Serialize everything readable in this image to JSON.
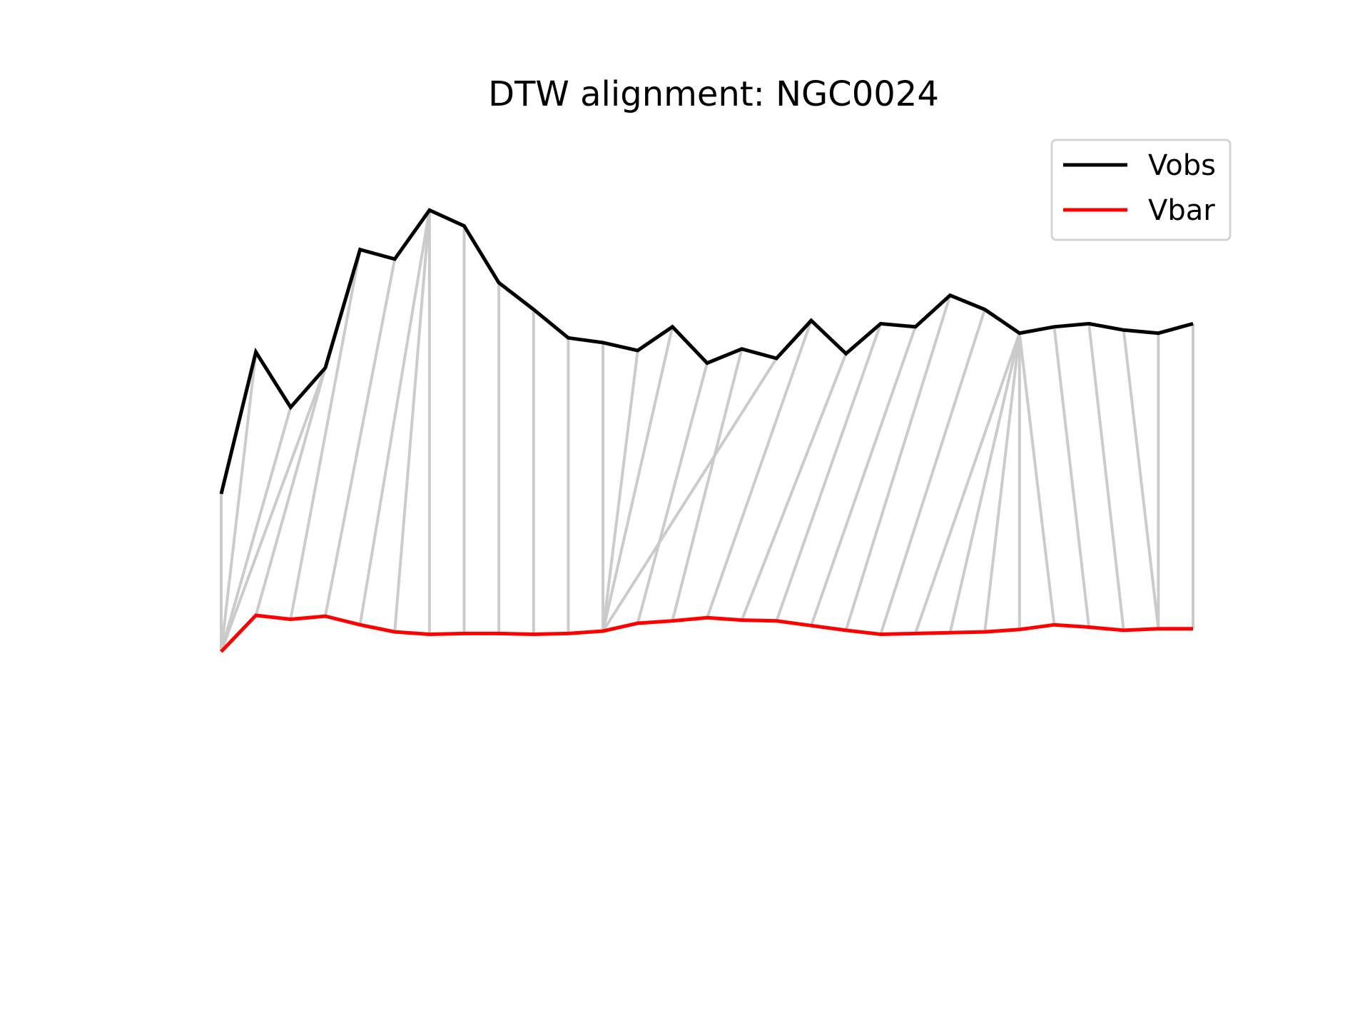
{
  "chart_data": {
    "type": "line",
    "title": "DTW alignment: NGC0024",
    "xlabel": "",
    "ylabel": "",
    "axes_visible": false,
    "grid": false,
    "legend_position": "top-right",
    "xlim": [
      0,
      28
    ],
    "ylim": [
      -1.0,
      3.8
    ],
    "series": [
      {
        "name": "Vobs",
        "color": "#000000",
        "x": [
          0,
          1,
          2,
          3,
          4,
          5,
          6,
          7,
          8,
          9,
          10,
          11,
          12,
          13,
          14,
          15,
          16,
          17,
          18,
          19,
          20,
          21,
          22,
          23,
          24,
          25,
          26,
          27,
          28
        ],
        "values": [
          1.5,
          2.4,
          2.05,
          2.3,
          3.05,
          2.99,
          3.3,
          3.2,
          2.84,
          2.67,
          2.49,
          2.46,
          2.41,
          2.56,
          2.33,
          2.42,
          2.36,
          2.6,
          2.39,
          2.58,
          2.56,
          2.76,
          2.67,
          2.52,
          2.56,
          2.58,
          2.54,
          2.52,
          2.58
        ]
      },
      {
        "name": "Vbar",
        "color": "#ff0000",
        "x": [
          0,
          1,
          2,
          3,
          4,
          5,
          6,
          7,
          8,
          9,
          10,
          11,
          12,
          13,
          14,
          15,
          16,
          17,
          18,
          19,
          20,
          21,
          22,
          23,
          24,
          25,
          26,
          27,
          28
        ],
        "values": [
          0.5,
          0.73,
          0.705,
          0.725,
          0.67,
          0.625,
          0.61,
          0.615,
          0.615,
          0.61,
          0.615,
          0.63,
          0.68,
          0.695,
          0.715,
          0.7,
          0.695,
          0.665,
          0.635,
          0.61,
          0.615,
          0.62,
          0.625,
          0.64,
          0.67,
          0.655,
          0.635,
          0.645,
          0.645
        ]
      }
    ],
    "alignment": {
      "color": "#c8c8c8",
      "pairs": [
        [
          0,
          0
        ],
        [
          1,
          0
        ],
        [
          2,
          0
        ],
        [
          3,
          0
        ],
        [
          3,
          1
        ],
        [
          4,
          2
        ],
        [
          5,
          3
        ],
        [
          6,
          4
        ],
        [
          6,
          5
        ],
        [
          6,
          6
        ],
        [
          7,
          7
        ],
        [
          8,
          8
        ],
        [
          9,
          9
        ],
        [
          10,
          10
        ],
        [
          11,
          11
        ],
        [
          12,
          11
        ],
        [
          13,
          11
        ],
        [
          14,
          12
        ],
        [
          15,
          13
        ],
        [
          16,
          11
        ],
        [
          17,
          14
        ],
        [
          18,
          15
        ],
        [
          19,
          16
        ],
        [
          20,
          17
        ],
        [
          21,
          18
        ],
        [
          22,
          19
        ],
        [
          23,
          20
        ],
        [
          23,
          21
        ],
        [
          23,
          22
        ],
        [
          23,
          23
        ],
        [
          23,
          24
        ],
        [
          24,
          25
        ],
        [
          25,
          26
        ],
        [
          26,
          27
        ],
        [
          27,
          27
        ],
        [
          28,
          28
        ]
      ]
    }
  }
}
